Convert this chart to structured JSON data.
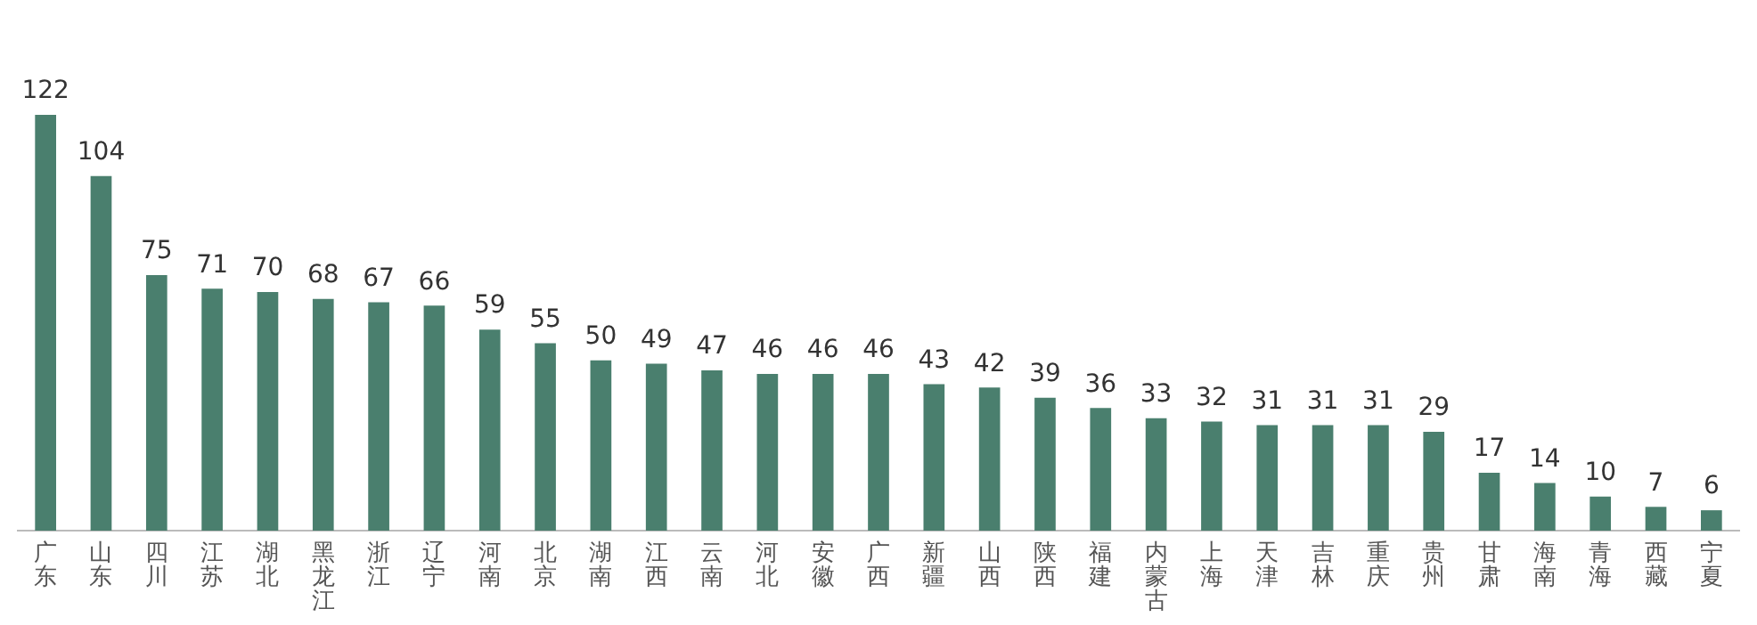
{
  "chart_data": {
    "type": "bar",
    "categories": [
      "广东",
      "山东",
      "四川",
      "江苏",
      "湖北",
      "黑龙江",
      "浙江",
      "辽宁",
      "河南",
      "北京",
      "湖南",
      "江西",
      "云南",
      "河北",
      "安徽",
      "广西",
      "新疆",
      "山西",
      "陕西",
      "福建",
      "内蒙古",
      "上海",
      "天津",
      "吉林",
      "重庆",
      "贵州",
      "甘肃",
      "海南",
      "青海",
      "西藏",
      "宁夏"
    ],
    "values": [
      122,
      104,
      75,
      71,
      70,
      68,
      67,
      66,
      59,
      55,
      50,
      49,
      47,
      46,
      46,
      46,
      43,
      42,
      39,
      36,
      33,
      32,
      31,
      31,
      31,
      29,
      17,
      14,
      10,
      7,
      6
    ],
    "color": "#4a7f6e",
    "data_labels": true,
    "grid": false,
    "legend": false
  }
}
